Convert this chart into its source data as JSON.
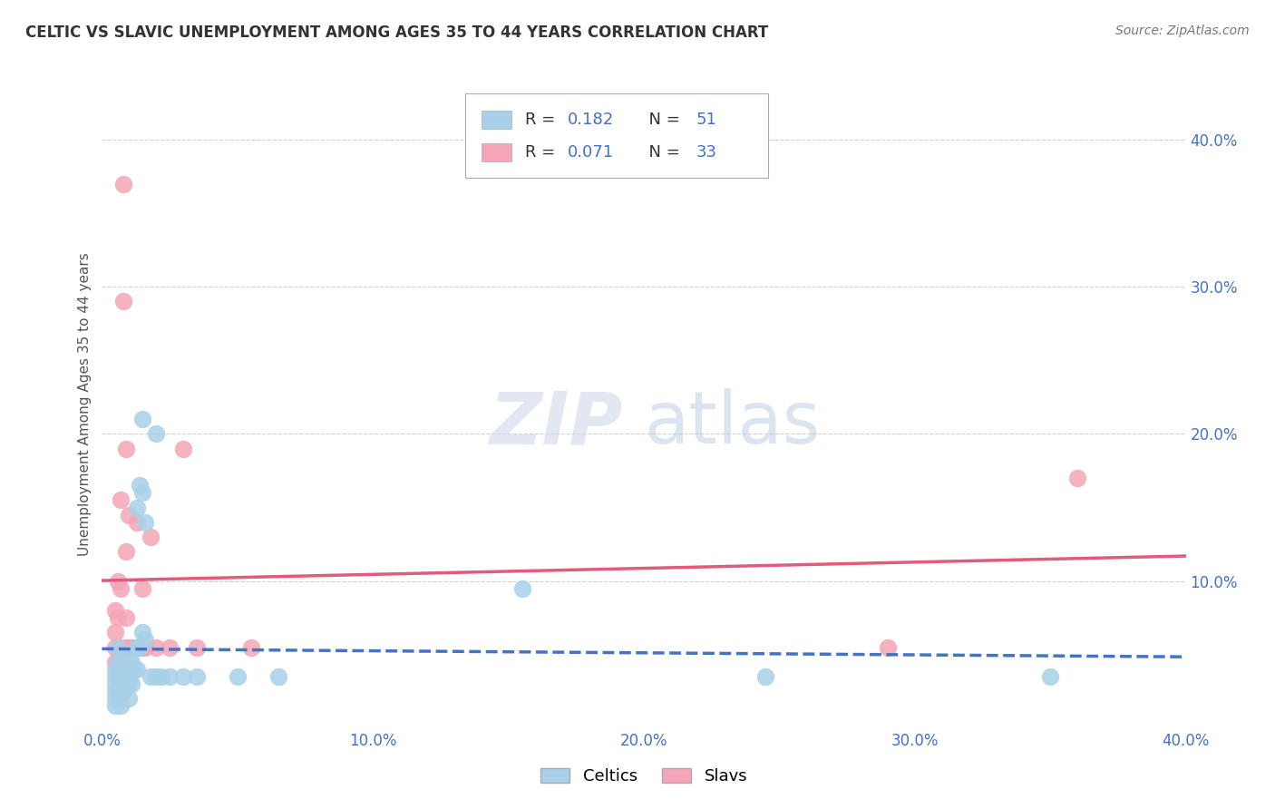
{
  "title": "CELTIC VS SLAVIC UNEMPLOYMENT AMONG AGES 35 TO 44 YEARS CORRELATION CHART",
  "source": "Source: ZipAtlas.com",
  "ylabel": "Unemployment Among Ages 35 to 44 years",
  "xlim": [
    0.0,
    0.4
  ],
  "ylim": [
    0.0,
    0.44
  ],
  "xticks": [
    0.0,
    0.1,
    0.2,
    0.3,
    0.4
  ],
  "yticks": [
    0.1,
    0.2,
    0.3,
    0.4
  ],
  "xticklabels": [
    "0.0%",
    "10.0%",
    "20.0%",
    "30.0%",
    "40.0%"
  ],
  "yticklabels": [
    "10.0%",
    "20.0%",
    "30.0%",
    "40.0%"
  ],
  "celtic_R": "0.182",
  "celtic_N": "51",
  "slavic_R": "0.071",
  "slavic_N": "33",
  "celtic_color": "#a8d0e8",
  "slavic_color": "#f4a6b8",
  "celtic_line_color": "#4472c4",
  "slavic_line_color": "#e05c7a",
  "legend_label_celtic": "Celtics",
  "legend_label_slavic": "Slavs",
  "watermark_zip": "ZIP",
  "watermark_atlas": "atlas",
  "background_color": "#ffffff",
  "celtic_scatter": [
    [
      0.005,
      0.04
    ],
    [
      0.005,
      0.035
    ],
    [
      0.005,
      0.03
    ],
    [
      0.005,
      0.025
    ],
    [
      0.005,
      0.02
    ],
    [
      0.005,
      0.015
    ],
    [
      0.006,
      0.055
    ],
    [
      0.006,
      0.045
    ],
    [
      0.006,
      0.04
    ],
    [
      0.006,
      0.035
    ],
    [
      0.006,
      0.025
    ],
    [
      0.007,
      0.045
    ],
    [
      0.007,
      0.04
    ],
    [
      0.007,
      0.035
    ],
    [
      0.007,
      0.025
    ],
    [
      0.007,
      0.015
    ],
    [
      0.008,
      0.04
    ],
    [
      0.008,
      0.035
    ],
    [
      0.008,
      0.025
    ],
    [
      0.009,
      0.04
    ],
    [
      0.009,
      0.03
    ],
    [
      0.01,
      0.05
    ],
    [
      0.01,
      0.04
    ],
    [
      0.01,
      0.035
    ],
    [
      0.01,
      0.03
    ],
    [
      0.01,
      0.02
    ],
    [
      0.011,
      0.045
    ],
    [
      0.011,
      0.03
    ],
    [
      0.012,
      0.04
    ],
    [
      0.013,
      0.15
    ],
    [
      0.013,
      0.055
    ],
    [
      0.013,
      0.04
    ],
    [
      0.014,
      0.165
    ],
    [
      0.014,
      0.055
    ],
    [
      0.015,
      0.21
    ],
    [
      0.015,
      0.16
    ],
    [
      0.015,
      0.065
    ],
    [
      0.016,
      0.14
    ],
    [
      0.016,
      0.06
    ],
    [
      0.018,
      0.035
    ],
    [
      0.02,
      0.2
    ],
    [
      0.02,
      0.035
    ],
    [
      0.022,
      0.035
    ],
    [
      0.025,
      0.035
    ],
    [
      0.03,
      0.035
    ],
    [
      0.035,
      0.035
    ],
    [
      0.05,
      0.035
    ],
    [
      0.065,
      0.035
    ],
    [
      0.155,
      0.095
    ],
    [
      0.245,
      0.035
    ],
    [
      0.35,
      0.035
    ]
  ],
  "slavic_scatter": [
    [
      0.005,
      0.08
    ],
    [
      0.005,
      0.065
    ],
    [
      0.005,
      0.055
    ],
    [
      0.005,
      0.045
    ],
    [
      0.006,
      0.1
    ],
    [
      0.006,
      0.075
    ],
    [
      0.006,
      0.055
    ],
    [
      0.007,
      0.155
    ],
    [
      0.007,
      0.095
    ],
    [
      0.007,
      0.055
    ],
    [
      0.008,
      0.37
    ],
    [
      0.008,
      0.29
    ],
    [
      0.009,
      0.19
    ],
    [
      0.009,
      0.12
    ],
    [
      0.009,
      0.075
    ],
    [
      0.009,
      0.055
    ],
    [
      0.01,
      0.145
    ],
    [
      0.01,
      0.055
    ],
    [
      0.011,
      0.055
    ],
    [
      0.012,
      0.055
    ],
    [
      0.013,
      0.14
    ],
    [
      0.013,
      0.055
    ],
    [
      0.015,
      0.095
    ],
    [
      0.015,
      0.055
    ],
    [
      0.016,
      0.055
    ],
    [
      0.018,
      0.13
    ],
    [
      0.02,
      0.055
    ],
    [
      0.025,
      0.055
    ],
    [
      0.03,
      0.19
    ],
    [
      0.035,
      0.055
    ],
    [
      0.055,
      0.055
    ],
    [
      0.29,
      0.055
    ],
    [
      0.36,
      0.17
    ]
  ]
}
